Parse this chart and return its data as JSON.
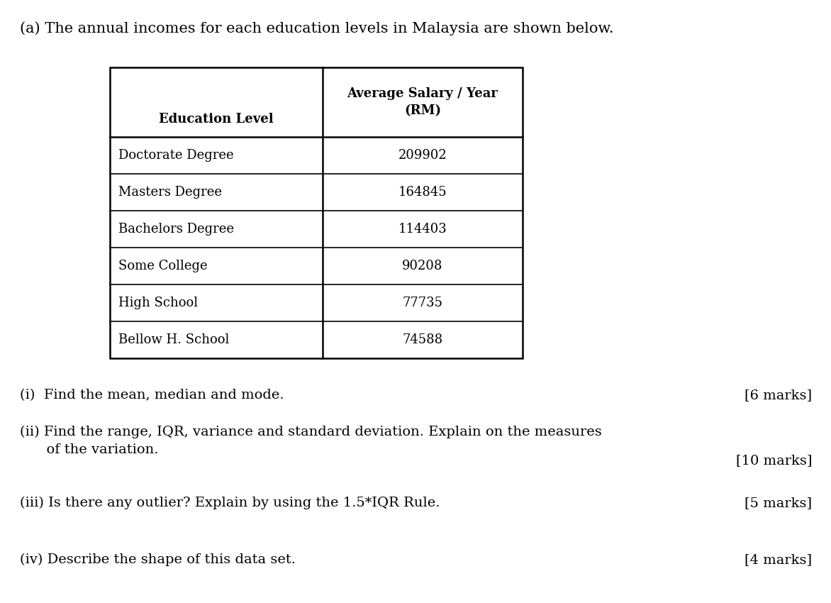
{
  "title": "(a) The annual incomes for each education levels in Malaysia are shown below.",
  "col1_header": "Education Level",
  "col2_header_line1": "Average Salary / Year",
  "col2_header_line2": "(RM)",
  "rows": [
    [
      "Doctorate Degree",
      "209902"
    ],
    [
      "Masters Degree",
      "164845"
    ],
    [
      "Bachelors Degree",
      "114403"
    ],
    [
      "Some College",
      "90208"
    ],
    [
      "High School",
      "77735"
    ],
    [
      "Bellow H. School",
      "74588"
    ]
  ],
  "q_texts": [
    "(i)  Find the mean, median and mode.",
    "(ii) Find the range, IQR, variance and standard deviation. Explain on the measures\n      of the variation.",
    "(iii) Is there any outlier? Explain by using the 1.5*IQR Rule.",
    "(iv) Describe the shape of this data set."
  ],
  "q_marks": [
    "[6 marks]",
    "[10 marks]",
    "[5 marks]",
    "[4 marks]"
  ],
  "background_color": "#ffffff",
  "text_color": "#000000",
  "font_size_title": 15,
  "font_size_table": 13,
  "font_size_questions": 14
}
